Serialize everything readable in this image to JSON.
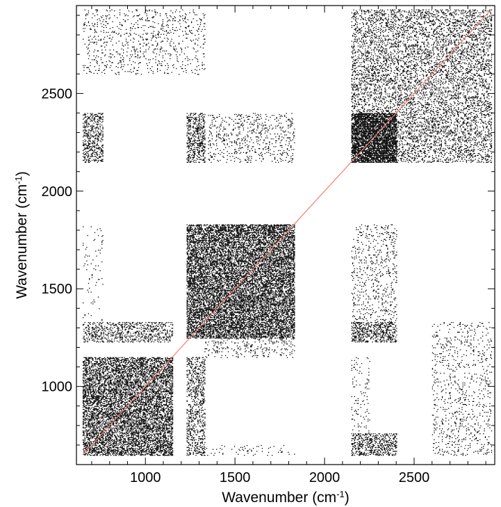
{
  "chart_data": {
    "type": "scatter",
    "title": "",
    "xlabel": {
      "prefix": "Wavenumber (cm",
      "sup": "-1",
      "suffix": ")"
    },
    "ylabel": {
      "prefix": "Wavenumber (cm",
      "sup": "-1",
      "suffix": ")"
    },
    "xlim": [
      615,
      2950
    ],
    "ylim": [
      600,
      2950
    ],
    "x_ticks": [
      1000,
      1500,
      2000,
      2500
    ],
    "y_ticks": [
      1000,
      1500,
      2000,
      2500
    ],
    "grid": false,
    "legend": "none",
    "colors": {
      "points": "#000000",
      "diagonal": "#f08070"
    },
    "diagonal_line": {
      "from": [
        650,
        650
      ],
      "to": [
        2930,
        2930
      ]
    },
    "series": [
      {
        "blocks": [
          {
            "x": [
              650,
              1150
            ],
            "y": [
              650,
              1150
            ],
            "density": 0.55
          },
          {
            "x": [
              1230,
              1830
            ],
            "y": [
              1250,
              1830
            ],
            "density": 0.6
          },
          {
            "x": [
              2150,
              2400
            ],
            "y": [
              2150,
              2400
            ],
            "density": 0.75
          },
          {
            "x": [
              2150,
              2930
            ],
            "y": [
              2150,
              2930
            ],
            "density": 0.25
          },
          {
            "x": [
              650,
              1150
            ],
            "y": [
              1230,
              1330
            ],
            "density": 0.3
          },
          {
            "x": [
              1230,
              1330
            ],
            "y": [
              650,
              1150
            ],
            "density": 0.3
          },
          {
            "x": [
              650,
              760
            ],
            "y": [
              2150,
              2400
            ],
            "density": 0.35
          },
          {
            "x": [
              2150,
              2400
            ],
            "y": [
              650,
              760
            ],
            "density": 0.35
          },
          {
            "x": [
              1230,
              1330
            ],
            "y": [
              2150,
              2400
            ],
            "density": 0.35
          },
          {
            "x": [
              2150,
              2400
            ],
            "y": [
              1230,
              1330
            ],
            "density": 0.35
          },
          {
            "x": [
              2150,
              2400
            ],
            "y": [
              1230,
              1830
            ],
            "density": 0.1
          },
          {
            "x": [
              1350,
              1830
            ],
            "y": [
              2150,
              2400
            ],
            "density": 0.12
          },
          {
            "x": [
              2600,
              2930
            ],
            "y": [
              650,
              1330
            ],
            "density": 0.08
          },
          {
            "x": [
              650,
              1330
            ],
            "y": [
              2600,
              2930
            ],
            "density": 0.08
          },
          {
            "x": [
              650,
              760
            ],
            "y": [
              1330,
              1830
            ],
            "density": 0.03
          },
          {
            "x": [
              2150,
              2250
            ],
            "y": [
              650,
              1150
            ],
            "density": 0.05
          },
          {
            "x": [
              1230,
              1830
            ],
            "y": [
              650,
              700
            ],
            "density": 0.05
          },
          {
            "x": [
              1330,
              1830
            ],
            "y": [
              1150,
              1250
            ],
            "density": 0.1
          }
        ]
      }
    ]
  }
}
